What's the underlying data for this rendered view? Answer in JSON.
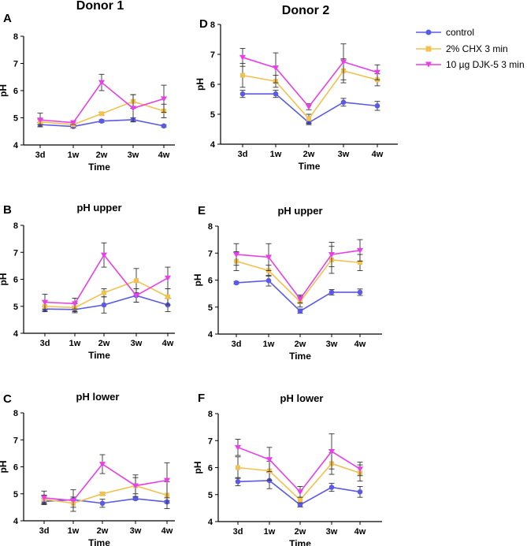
{
  "figure": {
    "column_titles": [
      "Donor 1",
      "Donor 2"
    ],
    "legend": [
      {
        "label": "control",
        "color": "#5a5ae6",
        "marker": "circle"
      },
      {
        "label": "2% CHX 3 min",
        "color": "#f2c14e",
        "marker": "square"
      },
      {
        "label": "10 µg DJK-5 3 min",
        "color": "#e83fe8",
        "marker": "triangle-down"
      }
    ]
  },
  "chart_data": [
    {
      "id": "A",
      "panel_letter": "A",
      "title": "",
      "type": "line",
      "categories": [
        "3d",
        "1w",
        "2w",
        "3w",
        "4w"
      ],
      "xlabel": "Time",
      "ylabel": "pH",
      "ylim": [
        4,
        8
      ],
      "yticks": [
        4,
        5,
        6,
        7,
        8
      ],
      "series": [
        {
          "name": "control",
          "values": [
            4.75,
            4.68,
            4.88,
            4.93,
            4.7
          ],
          "errors": [
            0.08,
            0.05,
            0.05,
            0.07,
            0.04
          ]
        },
        {
          "name": "2% CHX 3 min",
          "values": [
            4.85,
            4.75,
            5.15,
            5.6,
            5.25
          ],
          "errors": [
            0.1,
            0.06,
            0.05,
            0.25,
            0.25
          ]
        },
        {
          "name": "10 µg DJK-5 3 min",
          "values": [
            4.92,
            4.82,
            6.3,
            5.35,
            5.7
          ],
          "errors": [
            0.25,
            0.07,
            0.3,
            0.5,
            0.5
          ]
        }
      ]
    },
    {
      "id": "D",
      "panel_letter": "D",
      "title": "",
      "type": "line",
      "categories": [
        "3d",
        "1w",
        "2w",
        "3w",
        "4w"
      ],
      "xlabel": "Time",
      "ylabel": "pH",
      "ylim": [
        4,
        8
      ],
      "yticks": [
        4,
        5,
        6,
        7,
        8
      ],
      "series": [
        {
          "name": "control",
          "values": [
            5.68,
            5.68,
            4.72,
            5.4,
            5.28
          ],
          "errors": [
            0.12,
            0.12,
            0.07,
            0.13,
            0.15
          ]
        },
        {
          "name": "2% CHX 3 min",
          "values": [
            6.3,
            6.1,
            4.85,
            6.45,
            6.15
          ],
          "errors": [
            0.4,
            0.2,
            0.15,
            0.4,
            0.2
          ]
        },
        {
          "name": "10 µg DJK-5 3 min",
          "values": [
            6.9,
            6.55,
            5.25,
            6.75,
            6.4
          ],
          "errors": [
            0.3,
            0.5,
            0.1,
            0.6,
            0.25
          ]
        }
      ]
    },
    {
      "id": "B",
      "panel_letter": "B",
      "title": "pH upper",
      "type": "line",
      "categories": [
        "3d",
        "1w",
        "2w",
        "3w",
        "4w"
      ],
      "xlabel": "Time",
      "ylabel": "pH",
      "ylim": [
        4,
        8
      ],
      "yticks": [
        4,
        5,
        6,
        7,
        8
      ],
      "series": [
        {
          "name": "control",
          "values": [
            4.9,
            4.88,
            5.05,
            5.4,
            5.05
          ],
          "errors": [
            0.1,
            0.12,
            0.3,
            0.25,
            0.25
          ]
        },
        {
          "name": "2% CHX 3 min",
          "values": [
            5.0,
            4.95,
            5.5,
            5.95,
            5.35
          ],
          "errors": [
            0.2,
            0.15,
            0.15,
            0.45,
            0.3
          ]
        },
        {
          "name": "10 µg DJK-5 3 min",
          "values": [
            5.15,
            5.1,
            6.9,
            5.4,
            6.05
          ],
          "errors": [
            0.3,
            0.2,
            0.45,
            0.25,
            0.4
          ]
        }
      ]
    },
    {
      "id": "E",
      "panel_letter": "E",
      "title": "pH upper",
      "type": "line",
      "categories": [
        "3d",
        "1w",
        "2w",
        "3w",
        "4w"
      ],
      "xlabel": "Time",
      "ylabel": "pH",
      "ylim": [
        4,
        8
      ],
      "yticks": [
        4,
        5,
        6,
        7,
        8
      ],
      "series": [
        {
          "name": "control",
          "values": [
            5.9,
            5.98,
            4.85,
            5.55,
            5.55
          ],
          "errors": [
            0.05,
            0.2,
            0.08,
            0.1,
            0.12
          ]
        },
        {
          "name": "2% CHX 3 min",
          "values": [
            6.7,
            6.35,
            5.2,
            6.75,
            6.65
          ],
          "errors": [
            0.35,
            0.2,
            0.2,
            0.5,
            0.3
          ]
        },
        {
          "name": "10 µg DJK-5 3 min",
          "values": [
            6.95,
            6.85,
            5.3,
            6.95,
            7.1
          ],
          "errors": [
            0.4,
            0.5,
            0.15,
            0.45,
            0.4
          ]
        }
      ]
    },
    {
      "id": "C",
      "panel_letter": "C",
      "title": "pH lower",
      "type": "line",
      "categories": [
        "3d",
        "1w",
        "2w",
        "3w",
        "4w"
      ],
      "xlabel": "Time",
      "ylabel": "pH",
      "ylim": [
        4,
        8
      ],
      "yticks": [
        4,
        5,
        6,
        7,
        8
      ],
      "series": [
        {
          "name": "control",
          "values": [
            4.72,
            4.78,
            4.65,
            4.82,
            4.7
          ],
          "errors": [
            0.1,
            0.1,
            0.15,
            0.05,
            0.05
          ]
        },
        {
          "name": "2% CHX 3 min",
          "values": [
            4.8,
            4.65,
            5.0,
            5.3,
            4.95
          ],
          "errors": [
            0.15,
            0.15,
            0.05,
            0.3,
            0.5
          ]
        },
        {
          "name": "10 µg DJK-5 3 min",
          "values": [
            4.85,
            4.75,
            6.1,
            5.3,
            5.5
          ],
          "errors": [
            0.25,
            0.4,
            0.35,
            0.4,
            0.65
          ]
        }
      ]
    },
    {
      "id": "F",
      "panel_letter": "F",
      "title": "pH lower",
      "type": "line",
      "categories": [
        "3d",
        "1w",
        "2w",
        "3w",
        "4w"
      ],
      "xlabel": "Time",
      "ylabel": "pH",
      "ylim": [
        4,
        8
      ],
      "yticks": [
        4,
        5,
        6,
        7,
        8
      ],
      "series": [
        {
          "name": "control",
          "values": [
            5.48,
            5.52,
            4.62,
            5.27,
            5.1
          ],
          "errors": [
            0.15,
            0.3,
            0.08,
            0.15,
            0.2
          ]
        },
        {
          "name": "2% CHX 3 min",
          "values": [
            6.0,
            5.88,
            4.8,
            6.15,
            5.8
          ],
          "errors": [
            0.4,
            0.35,
            0.1,
            0.4,
            0.3
          ]
        },
        {
          "name": "10 µg DJK-5 3 min",
          "values": [
            6.75,
            6.3,
            5.1,
            6.6,
            5.95
          ],
          "errors": [
            0.3,
            0.45,
            0.2,
            0.65,
            0.25
          ]
        }
      ]
    }
  ]
}
